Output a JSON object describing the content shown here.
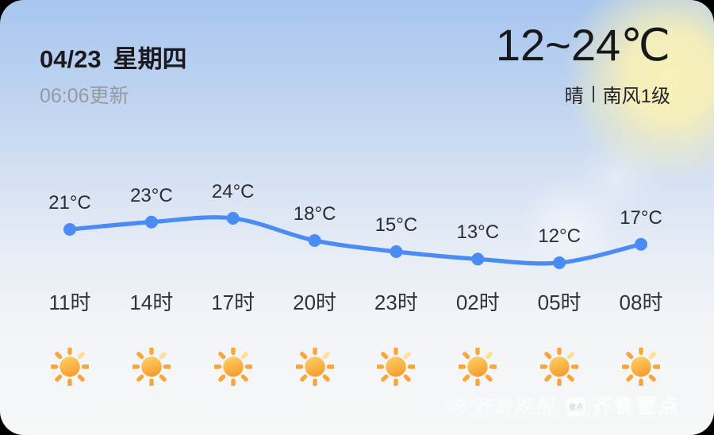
{
  "card": {
    "date": "04/23",
    "weekday": "星期四",
    "updated": "06:06更新",
    "temp_range": "12~24℃",
    "condition": "晴",
    "wind": "南风1级"
  },
  "chart_data": {
    "type": "line",
    "title": "",
    "x": [
      "11时",
      "14时",
      "17时",
      "20时",
      "23时",
      "02时",
      "05时",
      "08时"
    ],
    "values": [
      21,
      23,
      24,
      18,
      15,
      13,
      12,
      17
    ],
    "point_labels": [
      "21°C",
      "23°C",
      "24°C",
      "18°C",
      "15°C",
      "13°C",
      "12°C",
      "17°C"
    ],
    "icons": [
      "sun-icon",
      "sun-icon",
      "sun-icon",
      "sun-icon",
      "sun-icon",
      "sun-icon",
      "sun-icon",
      "sun-icon"
    ],
    "ylim": [
      12,
      24
    ],
    "grid": false,
    "legend": false,
    "line_color": "#4a8bf4",
    "point_color": "#4a8bf4"
  },
  "colors": {
    "accent_blue": "#4a8bf4",
    "sun_top": "#ffd468",
    "sun_bottom": "#f79f33",
    "sun_ray": "#f8a63c",
    "sun_ray_light": "#ffe095",
    "bg_top": "#a8c6f0",
    "bg_bottom": "#f7f8f8",
    "glow_yellow": "#fdf3b3"
  },
  "watermark": {
    "logo_glyph": "◎",
    "brand1": "齐鲁晚报",
    "badge": "壹点",
    "brand2": "齐鲁壹点"
  }
}
